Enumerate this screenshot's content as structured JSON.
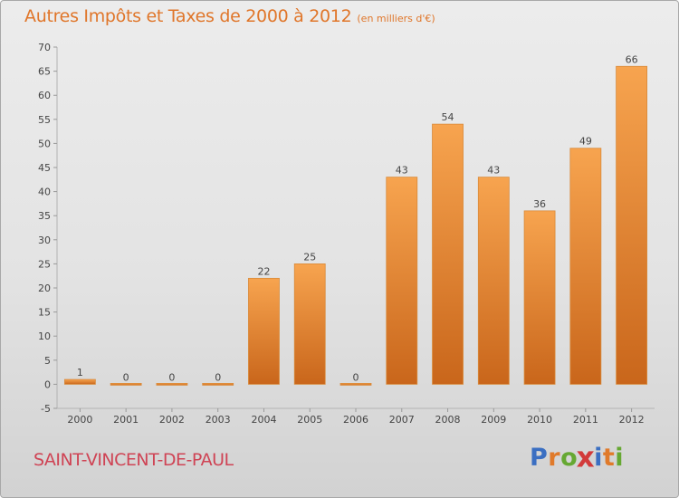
{
  "header": {
    "title": "Autres Impôts et Taxes de 2000 à 2012",
    "subtitle": "(en milliers d'€)"
  },
  "footer": {
    "commune": "SAINT-VINCENT-DE-PAUL",
    "logo_letters": [
      "P",
      "r",
      "o",
      "x",
      "i",
      "t",
      "i"
    ],
    "logo_colors": [
      "#3b6fc2",
      "#e07a2a",
      "#66a832",
      "#d23a3a",
      "#3b6fc2",
      "#e07a2a",
      "#66a832"
    ]
  },
  "colors": {
    "bar_light": "#f7a44f",
    "bar_dark": "#c9661b",
    "title": "#e0762a",
    "commune": "#cf4455"
  },
  "chart_data": {
    "type": "bar",
    "title": "Autres Impôts et Taxes de 2000 à 2012",
    "subtitle": "(en milliers d'€)",
    "categories": [
      "2000",
      "2001",
      "2002",
      "2003",
      "2004",
      "2005",
      "2006",
      "2007",
      "2008",
      "2009",
      "2010",
      "2011",
      "2012"
    ],
    "values": [
      1,
      0,
      0,
      0,
      22,
      25,
      0,
      43,
      54,
      43,
      36,
      49,
      66
    ],
    "value_labels": [
      "1",
      "0",
      "0",
      "0",
      "22",
      "25",
      "0",
      "43",
      "54",
      "43",
      "36",
      "49",
      "66"
    ],
    "ylim": [
      -5,
      70
    ],
    "yticks": [
      -5,
      0,
      5,
      10,
      15,
      20,
      25,
      30,
      35,
      40,
      45,
      50,
      55,
      60,
      65,
      70
    ],
    "ytick_labels": [
      "-5",
      "0",
      "5",
      "10",
      "15",
      "20",
      "25",
      "30",
      "35",
      "40",
      "45",
      "50",
      "55",
      "60",
      "65",
      "70"
    ],
    "grid": false,
    "legend": "none"
  }
}
